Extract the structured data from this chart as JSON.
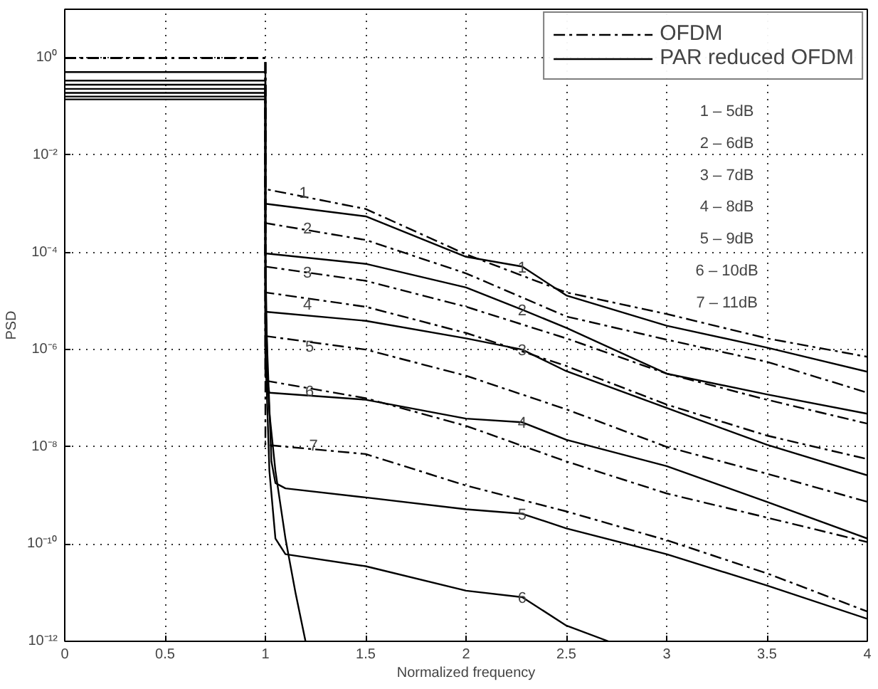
{
  "chart_data": {
    "type": "line",
    "xlabel": "Normalized frequency",
    "ylabel": "PSD",
    "log": "y",
    "grid": true,
    "legend": "top right",
    "xlim": [
      0,
      4
    ],
    "xticks": [
      0,
      0.5,
      1,
      1.5,
      2,
      2.5,
      3,
      3.5,
      4
    ],
    "ylim": [
      1e-12,
      10
    ],
    "yticks": [
      {
        "value": 1e-12,
        "label": "10⁻¹²"
      },
      {
        "value": 1e-10,
        "label": "10⁻¹⁰"
      },
      {
        "value": 1e-08,
        "label": "10⁻⁸"
      },
      {
        "value": 1e-06,
        "label": "10⁻⁶"
      },
      {
        "value": 0.0001,
        "label": "10⁻⁴"
      },
      {
        "value": 0.01,
        "label": "10⁻²"
      },
      {
        "value": 1,
        "label": "10⁰"
      }
    ],
    "series": [
      {
        "name": "OFDM",
        "color": "#000000",
        "line_style": "dashdot",
        "x": [
          0,
          1,
          1,
          1.5,
          2,
          2.5,
          3,
          3.5,
          4
        ],
        "values": [
          1,
          1,
          0.002,
          0.00078,
          9.1e-05,
          1.5e-05,
          5.4e-06,
          1.7e-06,
          7.1e-07
        ]
      },
      {
        "color": "#000000",
        "line_style": "dashdot",
        "x": [
          0,
          1,
          1,
          1.5,
          2,
          2.5,
          3,
          3.5,
          4
        ],
        "values": [
          1,
          1,
          0.0004,
          0.00018,
          3.7e-05,
          4.8e-06,
          1.6e-06,
          5.6e-07,
          1.3e-07
        ]
      },
      {
        "color": "#000000",
        "line_style": "dashdot",
        "x": [
          0,
          1,
          1,
          1.5,
          2,
          2.5,
          3,
          3.5,
          4
        ],
        "values": [
          1,
          1,
          5.1e-05,
          2.6e-05,
          7.6e-06,
          1.7e-06,
          3.2e-07,
          9.3e-08,
          3e-08
        ]
      },
      {
        "color": "#000000",
        "line_style": "dashdot",
        "x": [
          0,
          1,
          1,
          1.5,
          2,
          2.5,
          3,
          3.5,
          4
        ],
        "values": [
          1,
          1,
          1.5e-05,
          7.6e-06,
          2.2e-06,
          4.6e-07,
          7.4e-08,
          1.7e-08,
          5.6e-09
        ]
      },
      {
        "color": "#000000",
        "line_style": "dashdot",
        "x": [
          0,
          1,
          1,
          1.5,
          2,
          2.5,
          3,
          3.5,
          4
        ],
        "values": [
          1,
          1,
          1.9e-06,
          1e-06,
          2.9e-07,
          5.9e-08,
          1e-08,
          2.8e-09,
          7.4e-10
        ]
      },
      {
        "color": "#000000",
        "line_style": "dashdot",
        "x": [
          0,
          1,
          1,
          1.5,
          2,
          2.5,
          3,
          3.5,
          4
        ],
        "values": [
          1,
          1,
          2.3e-07,
          1e-07,
          2.7e-08,
          5e-09,
          1.1e-09,
          3.5e-10,
          1.1e-10
        ]
      },
      {
        "color": "#000000",
        "line_style": "dashdot",
        "x": [
          0,
          1,
          1,
          1.5,
          2,
          2.5,
          3,
          3.5,
          4
        ],
        "values": [
          1,
          1,
          1.1e-08,
          7.1e-09,
          1.6e-09,
          4.7e-10,
          1.2e-10,
          2.5e-11,
          4.1e-12
        ]
      },
      {
        "name": "PAR reduced OFDM",
        "color": "#000000",
        "line_style": "solid",
        "x": [
          0,
          1,
          1,
          1.5,
          2,
          2.28,
          2.5,
          3,
          3.5,
          4
        ],
        "values": [
          0.51,
          0.51,
          0.001,
          0.00055,
          8.1e-05,
          5.1e-05,
          1.3e-05,
          3.1e-06,
          1.1e-06,
          3.5e-07
        ]
      },
      {
        "color": "#000000",
        "line_style": "solid",
        "x": [
          0,
          1,
          1,
          1.5,
          2,
          2.28,
          2.5,
          3,
          3.5,
          4
        ],
        "values": [
          0.34,
          0.34,
          9.5e-05,
          5.8e-05,
          1.9e-05,
          6.6e-06,
          2.8e-06,
          3.2e-07,
          1.2e-07,
          4.8e-08
        ]
      },
      {
        "color": "#000000",
        "line_style": "solid",
        "x": [
          0,
          1,
          1,
          1.5,
          2,
          2.28,
          2.5,
          3,
          3.5,
          4
        ],
        "values": [
          0.28,
          0.28,
          6e-06,
          3.9e-06,
          1.7e-06,
          1e-06,
          3.6e-07,
          6.3e-08,
          1.1e-08,
          2.6e-09
        ]
      },
      {
        "color": "#000000",
        "line_style": "solid",
        "x": [
          0,
          1,
          1,
          1.02,
          1.5,
          2,
          2.28,
          2.5,
          3,
          3.5,
          4
        ],
        "values": [
          0.23,
          0.23,
          3.2e-07,
          1.3e-07,
          9.3e-08,
          3.8e-08,
          3.2e-08,
          1.4e-08,
          4e-09,
          7.4e-10,
          1.3e-10
        ]
      },
      {
        "color": "#000000",
        "line_style": "solid",
        "x": [
          0,
          1,
          1,
          1.03,
          1.05,
          1.1,
          1.5,
          2,
          2.28,
          2.5,
          3,
          3.5,
          4
        ],
        "values": [
          0.19,
          0.19,
          1e-05,
          5e-09,
          1.8e-09,
          1.4e-09,
          9.1e-10,
          5.2e-10,
          4.2e-10,
          2.1e-10,
          6.2e-11,
          1.4e-11,
          2.9e-12
        ]
      },
      {
        "color": "#000000",
        "line_style": "solid",
        "x": [
          0,
          1,
          1,
          1.02,
          1.05,
          1.1,
          1.5,
          2,
          2.28,
          2.5,
          2.71
        ],
        "values": [
          0.16,
          0.16,
          1e-06,
          3.2e-09,
          1.3e-10,
          6.2e-11,
          3.5e-11,
          1.1e-11,
          8.1e-12,
          2.1e-12,
          1e-12
        ]
      },
      {
        "color": "#000000",
        "line_style": "solid",
        "x": [
          0,
          1,
          1,
          1.01,
          1.02,
          1.05,
          1.1,
          1.15,
          1.2
        ],
        "values": [
          0.14,
          0.14,
          0.0001,
          3.2e-07,
          5e-08,
          3.2e-09,
          1.3e-10,
          1e-11,
          1e-12
        ]
      }
    ],
    "annotations": [
      "1 – 5dB",
      "2 – 6dB",
      "3 – 7dB",
      "4 – 8dB",
      "5 – 9dB",
      "6 – 10dB",
      "7 – 11dB",
      {
        "text": "1",
        "x": 1.19,
        "y": 0.0017
      },
      {
        "text": "2",
        "x": 1.21,
        "y": 0.00032
      },
      {
        "text": "3",
        "x": 1.21,
        "y": 3.9e-05
      },
      {
        "text": "4",
        "x": 1.21,
        "y": 8.7e-06
      },
      {
        "text": "5",
        "x": 1.22,
        "y": 1.2e-06
      },
      {
        "text": "6",
        "x": 1.22,
        "y": 1.4e-07
      },
      {
        "text": "7",
        "x": 1.24,
        "y": 1.1e-08
      },
      {
        "text": "1",
        "x": 2.28,
        "y": 5.1e-05
      },
      {
        "text": "2",
        "x": 2.28,
        "y": 6.6e-06
      },
      {
        "text": "3",
        "x": 2.28,
        "y": 1e-06
      },
      {
        "text": "4",
        "x": 2.28,
        "y": 3.2e-08
      },
      {
        "text": "5",
        "x": 2.28,
        "y": 4.2e-10
      },
      {
        "text": "6",
        "x": 2.28,
        "y": 8.1e-12
      }
    ]
  }
}
